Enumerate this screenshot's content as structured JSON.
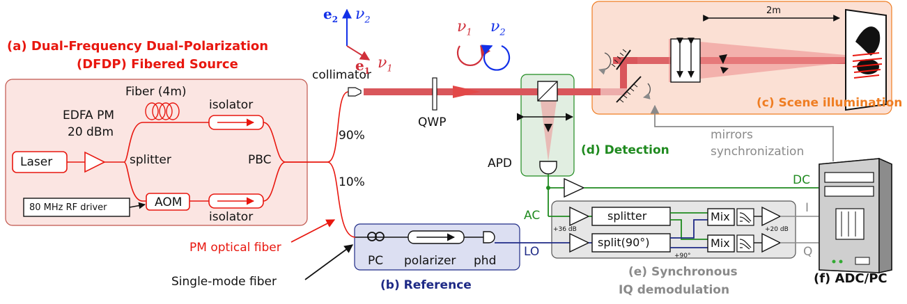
{
  "source": {
    "title_line1": "(a) Dual-Frequency Dual-Polarization",
    "title_line2": "(DFDP) Fibered Source",
    "fiber_label": "Fiber (4m)",
    "edfa_label_line1": "EDFA PM",
    "edfa_label_line2": "20 dBm",
    "laser_label": "Laser",
    "splitter_label": "splitter",
    "isolator_top_label": "isolator",
    "isolator_bottom_label": "isolator",
    "pbc_label": "PBC",
    "rf_driver_label": "80 MHz RF driver",
    "aom_label": "AOM"
  },
  "optics": {
    "collimator_label": "collimator",
    "qwp_label": "QWP",
    "pct_90": "90%",
    "pct_10": "10%",
    "e2": "e",
    "e2_sub": "2",
    "nu2": "ν",
    "nu2_sub": "2",
    "e1": "e",
    "e1_sub": "1",
    "nu1": "ν",
    "nu1_sub": "1",
    "circ_nu1": "ν",
    "circ_nu1_sub": "1",
    "circ_nu2": "ν",
    "circ_nu2_sub": "2"
  },
  "legend": {
    "pm_fiber": "PM optical fiber",
    "sm_fiber": "Single-mode fiber"
  },
  "reference": {
    "title": "(b) Reference",
    "pc": "PC",
    "polarizer": "polarizer",
    "phd": "phd",
    "lo": "LO"
  },
  "scene": {
    "title": "(c) Scene illumination",
    "distance": "2m"
  },
  "detection": {
    "title": "(d) Detection",
    "apd": "APD",
    "ac": "AC",
    "dc": "DC"
  },
  "demod": {
    "title_line1": "(e) Synchronous",
    "title_line2": "IQ demodulation",
    "splitter": "splitter",
    "split90": "split(90°)",
    "mix_top": "Mix",
    "mix_bottom": "Mix",
    "gain_in": "+36 dB",
    "gain_out": "+20 dB",
    "phase": "+90°",
    "i": "I",
    "q": "Q"
  },
  "pc": {
    "title": "(f) ADC/PC",
    "mirrors_line1": "mirrors",
    "mirrors_line2": "synchronization"
  },
  "colors": {
    "red": "#e8170f",
    "source_fill": "#fbe5e2",
    "scene_fill": "#fbe0d4",
    "detection_fill": "#e1eee1",
    "reference_fill": "#dcdff2",
    "demod_fill": "#e6e6e6",
    "green": "#1f8a1f",
    "navy": "#1e2a86",
    "blue": "#1230e8",
    "orange": "#ef7d22",
    "gray": "#8a8a8a"
  }
}
